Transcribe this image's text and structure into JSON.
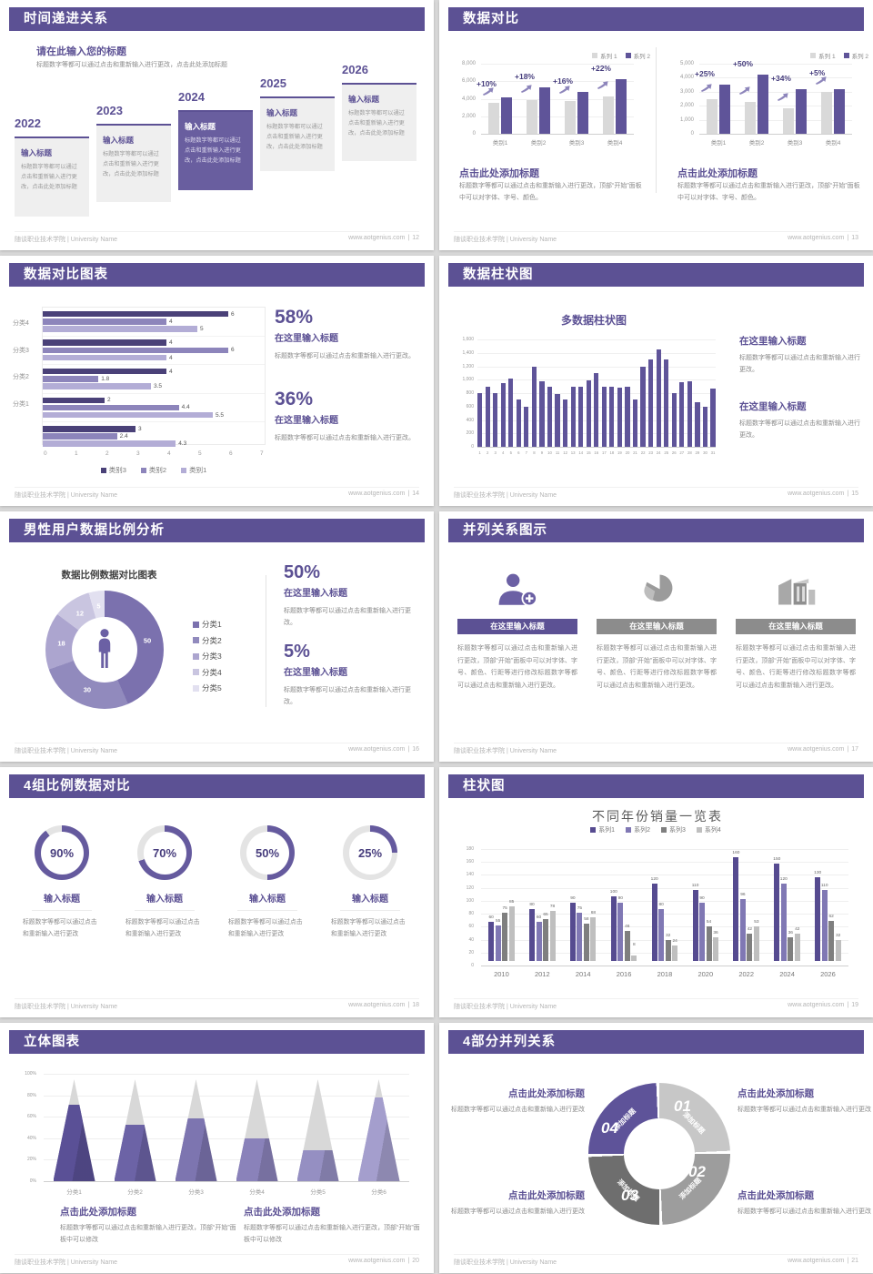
{
  "footer": {
    "org": "随谈职业技术学院 | University Name",
    "site": "www.aotgenius.com",
    "sep": "|"
  },
  "colors": {
    "accent": "#5c5194",
    "bar_purple": "#5f5499",
    "bar_gray": "#d9d9d9",
    "purple_dark": "#4a4178",
    "purple_mid": "#8d85bb",
    "purple_light": "#b3add6",
    "highlight_card": "#695e9f"
  },
  "slides": {
    "timeline": {
      "title": "时间递进关系",
      "page": "12",
      "heading": "请在此输入您的标题",
      "lead": "标题数字等都可以通过点击和重新输入进行更改，点击此处添加标题",
      "cards": [
        {
          "year": "2022",
          "title": "输入标题",
          "body": "标题数字等都可以通过点击和重新输入进行更改，点击此处添加标题",
          "highlight": false
        },
        {
          "year": "2023",
          "title": "输入标题",
          "body": "标题数字等都可以通过点击和重新输入进行更改，点击此处添加标题",
          "highlight": false
        },
        {
          "year": "2024",
          "title": "输入标题",
          "body": "标题数字等都可以通过点击和重新输入进行更改，点击此处添加标题",
          "highlight": true
        },
        {
          "year": "2025",
          "title": "输入标题",
          "body": "标题数字等都可以通过点击和重新输入进行更改，点击此处添加标题",
          "highlight": false
        },
        {
          "year": "2026",
          "title": "输入标题",
          "body": "标题数字等都可以通过点击和重新输入进行更改，点击此处添加标题",
          "highlight": false
        }
      ]
    },
    "compare": {
      "title": "数据对比",
      "page": "13",
      "panels": [
        {
          "heading": "点击此处添加标题",
          "body": "标题数字等都可以通过点击和重新输入进行更改，顶部“开始”面板中可以对字体、字号、颜色。"
        },
        {
          "heading": "点击此处添加标题",
          "body": "标题数字等都可以通过点击和重新输入进行更改，顶部“开始”面板中可以对字体、字号、颜色。"
        }
      ]
    },
    "hbar": {
      "title": "数据对比图表",
      "page": "14",
      "stats": [
        {
          "value": "58%",
          "heading": "在这里输入标题",
          "body": "标题数字等都可以通过点击和重新输入进行更改。"
        },
        {
          "value": "36%",
          "heading": "在这里输入标题",
          "body": "标题数字等都可以通过点击和重新输入进行更改。"
        }
      ]
    },
    "multicol": {
      "title": "数据柱状图",
      "page": "15",
      "blocks": [
        {
          "heading": "在这里输入标题",
          "body": "标题数字等都可以通过点击和重新输入进行更改。"
        },
        {
          "heading": "在这里输入标题",
          "body": "标题数字等都可以通过点击和重新输入进行更改。"
        }
      ]
    },
    "donut": {
      "title": "男性用户数据比例分析",
      "page": "16",
      "stats": [
        {
          "value": "50%",
          "heading": "在这里输入标题",
          "body": "标题数字等都可以通过点击和重新输入进行更改。"
        },
        {
          "value": "5%",
          "heading": "在这里输入标题",
          "body": "标题数字等都可以通过点击和重新输入进行更改。"
        }
      ]
    },
    "triples": {
      "title": "并列关系图示",
      "page": "17",
      "items": [
        {
          "icon": "person-add-icon",
          "heading": "在这里输入标题",
          "accent": true,
          "body": "标题数字等都可以通过点击和重新输入进行更改，顶部“开始”面板中可以对字体、字号、颜色、行距等进行修改标题数字等都可以通过点击和重新输入进行更改。"
        },
        {
          "icon": "pie-3d-icon",
          "heading": "在这里输入标题",
          "accent": false,
          "body": "标题数字等都可以通过点击和重新输入进行更改，顶部“开始”面板中可以对字体、字号、颜色、行距等进行修改标题数字等都可以通过点击和重新输入进行更改。"
        },
        {
          "icon": "building-icon",
          "heading": "在这里输入标题",
          "accent": false,
          "body": "标题数字等都可以通过点击和重新输入进行更改，顶部“开始”面板中可以对字体、字号、颜色、行距等进行修改标题数字等都可以通过点击和重新输入进行更改。"
        }
      ]
    },
    "rings": {
      "title": "4组比例数据对比",
      "page": "18",
      "items": [
        {
          "percent": "90%",
          "heading": "输入标题",
          "body": "标题数字等都可以通过点击和重新输入进行更改"
        },
        {
          "percent": "70%",
          "heading": "输入标题",
          "body": "标题数字等都可以通过点击和重新输入进行更改"
        },
        {
          "percent": "50%",
          "heading": "输入标题",
          "body": "标题数字等都可以通过点击和重新输入进行更改"
        },
        {
          "percent": "25%",
          "heading": "输入标题",
          "body": "标题数字等都可以通过点击和重新输入进行更改"
        }
      ]
    },
    "grouped": {
      "title": "柱状图",
      "page": "19"
    },
    "cones": {
      "title": "立体图表",
      "page": "20",
      "blocks": [
        {
          "heading": "点击此处添加标题",
          "body": "标题数字等都可以通过点击和重新输入进行更改，顶部“开始”面板中可以修改"
        },
        {
          "heading": "点击此处添加标题",
          "body": "标题数字等都可以通过点击和重新输入进行更改，顶部“开始”面板中可以修改"
        }
      ]
    },
    "quad": {
      "title": "4部分并列关系",
      "page": "21",
      "blocks": [
        {
          "heading": "点击此处添加标题",
          "body": "标题数字等都可以通过点击和重新输入进行更改"
        },
        {
          "heading": "点击此处添加标题",
          "body": "标题数字等都可以通过点击和重新输入进行更改"
        },
        {
          "heading": "点击此处添加标题",
          "body": "标题数字等都可以通过点击和重新输入进行更改"
        },
        {
          "heading": "点击此处添加标题",
          "body": "标题数字等都可以通过点击和重新输入进行更改"
        }
      ]
    }
  },
  "chart_data": [
    {
      "id": "compare-left",
      "type": "bar",
      "categories": [
        "类别1",
        "类别2",
        "类别3",
        "类别4"
      ],
      "series": [
        {
          "name": "系列 1",
          "color": "#d9d9d9",
          "values": [
            3500,
            3800,
            3700,
            4300
          ]
        },
        {
          "name": "系列 2",
          "color": "#5f5499",
          "values": [
            4200,
            5300,
            4800,
            6200
          ]
        }
      ],
      "growth_labels": [
        "+10%",
        "+18%",
        "+16%",
        "+22%"
      ],
      "ylim": [
        0,
        8000
      ],
      "yticks": [
        "8,000",
        "6,000",
        "4,000",
        "2,000",
        "0"
      ],
      "legend_position": "top-right",
      "grid": true
    },
    {
      "id": "compare-right",
      "type": "bar",
      "categories": [
        "类别1",
        "类别2",
        "类别3",
        "类别4"
      ],
      "series": [
        {
          "name": "系列 1",
          "color": "#d9d9d9",
          "values": [
            2500,
            2300,
            1800,
            3000
          ]
        },
        {
          "name": "系列 2",
          "color": "#5f5499",
          "values": [
            3500,
            4200,
            3200,
            3200
          ]
        }
      ],
      "growth_labels": [
        "+25%",
        "+50%",
        "+34%",
        "+5%"
      ],
      "ylim": [
        0,
        5000
      ],
      "yticks": [
        "5,000",
        "4,000",
        "3,000",
        "2,000",
        "1,000",
        "0"
      ],
      "legend_position": "top-right",
      "grid": true
    },
    {
      "id": "category-hbar",
      "type": "bar",
      "orientation": "horizontal",
      "group_labels": [
        "分类4",
        "分类3",
        "分类2",
        "分类1",
        ""
      ],
      "series": [
        {
          "name": "类别3",
          "color": "#4a4178",
          "values": [
            6,
            4,
            4,
            2,
            3
          ]
        },
        {
          "name": "类别2",
          "color": "#8d85bb",
          "values": [
            4,
            6,
            1.8,
            4.4,
            2.4
          ]
        },
        {
          "name": "类别1",
          "color": "#b3add6",
          "values": [
            5,
            4,
            3.5,
            5.5,
            4.3
          ]
        }
      ],
      "xlim": [
        0,
        7
      ],
      "xticks": [
        "0",
        "1",
        "2",
        "3",
        "4",
        "5",
        "6",
        "7"
      ],
      "legend_position": "bottom",
      "data_labels": true
    },
    {
      "id": "multi-col",
      "type": "bar",
      "title": "多数据柱状图",
      "color": "#5f5499",
      "categories": [
        "1",
        "2",
        "3",
        "4",
        "5",
        "6",
        "7",
        "8",
        "9",
        "10",
        "11",
        "12",
        "13",
        "14",
        "15",
        "16",
        "17",
        "18",
        "19",
        "20",
        "21",
        "22",
        "23",
        "24",
        "25",
        "26",
        "27",
        "28",
        "29",
        "30",
        "31"
      ],
      "values": [
        800,
        900,
        800,
        950,
        1020,
        700,
        600,
        1200,
        980,
        900,
        780,
        700,
        890,
        895,
        990,
        1100,
        900,
        895,
        880,
        900,
        700,
        1200,
        1300,
        1450,
        1300,
        800,
        960,
        970,
        660,
        600,
        870
      ],
      "ylim": [
        0,
        1600
      ],
      "yticks": [
        "1,600",
        "1,400",
        "1,200",
        "1,000",
        "800",
        "600",
        "400",
        "200",
        "0"
      ],
      "grid": true
    },
    {
      "id": "male-donut",
      "type": "pie",
      "title": "数据比例数据对比图表",
      "labels": [
        "分类1",
        "分类2",
        "分类3",
        "分类4",
        "分类5"
      ],
      "values": [
        50,
        30,
        18,
        12,
        5
      ],
      "colors": [
        "#7b71ae",
        "#918abd",
        "#aca5cf",
        "#c9c5e0",
        "#e2e0f0"
      ],
      "center_icon": "male-person-icon",
      "legend_position": "right"
    },
    {
      "id": "progress-rings",
      "type": "pie",
      "unit": "%",
      "values": [
        90,
        70,
        50,
        25
      ],
      "color": "#655a9e",
      "track_color": "#e4e4e4"
    },
    {
      "id": "yearly-sales",
      "type": "bar",
      "title": "不同年份销量一览表",
      "categories": [
        "2010",
        "2012",
        "2014",
        "2016",
        "2018",
        "2020",
        "2022",
        "2024",
        "2026"
      ],
      "series": [
        {
          "name": "系列1",
          "color": "#564b90",
          "values": [
            60,
            80,
            90,
            100,
            120,
            110,
            160,
            150,
            130
          ]
        },
        {
          "name": "系列2",
          "color": "#8078b4",
          "values": [
            55,
            60,
            75,
            90,
            80,
            90,
            96,
            120,
            110
          ]
        },
        {
          "name": "系列3",
          "color": "#7f7f7f",
          "values": [
            75,
            65,
            58,
            46,
            32,
            54,
            42,
            36,
            62
          ]
        },
        {
          "name": "系列4",
          "color": "#bfbfbf",
          "values": [
            85,
            78,
            68,
            8,
            24,
            36,
            53,
            42,
            32
          ]
        }
      ],
      "ylim": [
        0,
        180
      ],
      "yticks": [
        "180",
        "160",
        "140",
        "120",
        "100",
        "80",
        "60",
        "40",
        "20",
        "0"
      ],
      "legend_position": "top",
      "data_labels": true,
      "grid": true
    },
    {
      "id": "cone-chart",
      "type": "bar",
      "variant": "cone",
      "categories": [
        "分类1",
        "分类2",
        "分类3",
        "分类4",
        "分类5",
        "分类6"
      ],
      "values": [
        75,
        55,
        62,
        42,
        30,
        82
      ],
      "colors": [
        "#5a5096",
        "#6c63a6",
        "#7d75b0",
        "#8a82ba",
        "#958fc2",
        "#a49ecd"
      ],
      "top_color": "#d8d8d8",
      "ylim": [
        0,
        100
      ],
      "yticks": [
        "100%",
        "80%",
        "60%",
        "40%",
        "20%",
        "0%"
      ],
      "grid": true
    },
    {
      "id": "quad-ring",
      "type": "pie",
      "values": [
        25,
        25,
        25,
        25
      ],
      "labels": [
        "01",
        "02",
        "03",
        "04"
      ],
      "seg_text": [
        "添加标题",
        "添加标题",
        "添加标题",
        "添加标题"
      ],
      "colors": [
        "#c7c7c7",
        "#9d9d9d",
        "#6e6e6e",
        "#5e5399"
      ]
    }
  ]
}
